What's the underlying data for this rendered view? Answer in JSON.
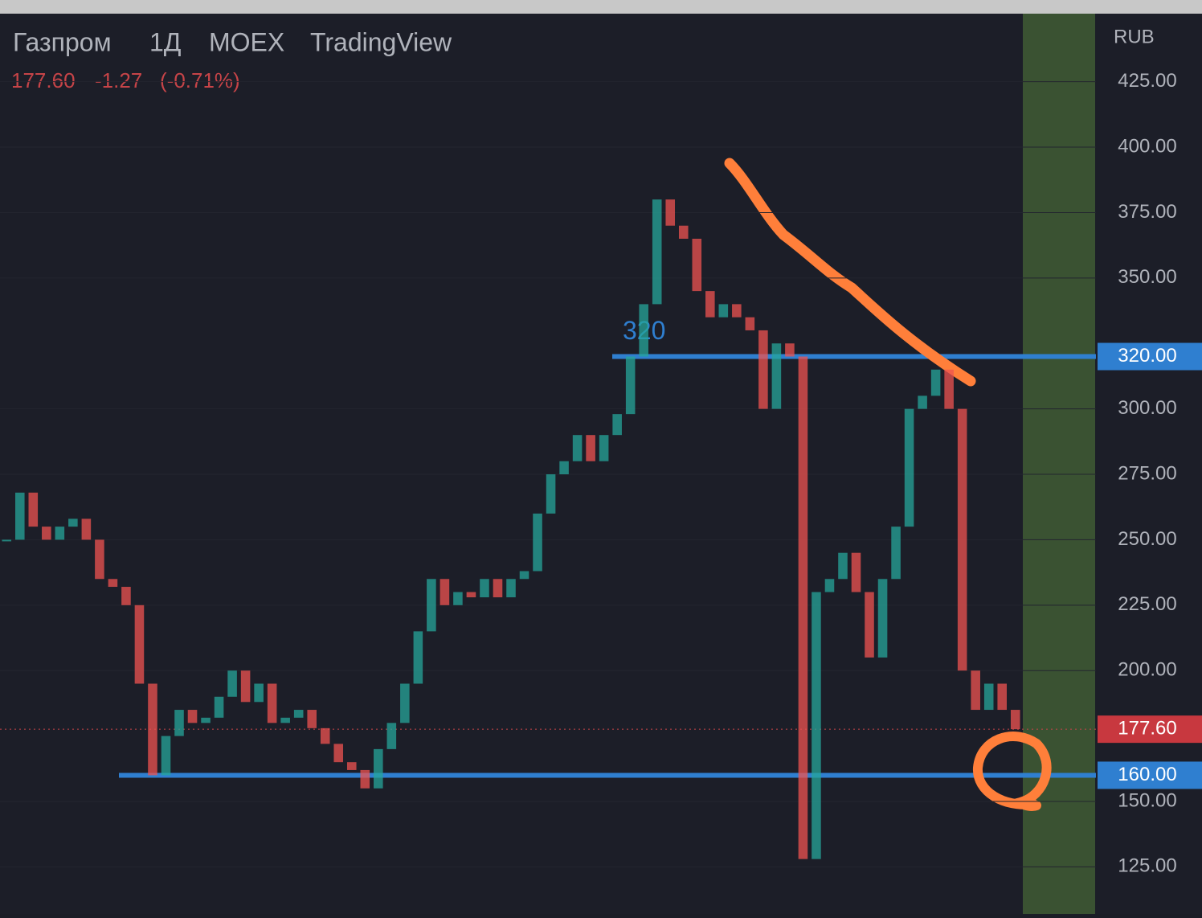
{
  "chart_data": {
    "type": "candlestick",
    "title": "Газпром",
    "interval": "1Д",
    "exchange": "MOEX",
    "platform": "TradingView",
    "last_price": {
      "value": 177.6,
      "label": "177.60"
    },
    "change": "-1.27",
    "change_percent": "(-0.71%)",
    "currency": "RUB",
    "up_color": "#26a69a",
    "down_color": "#ef5350",
    "values": [
      250,
      268,
      255,
      250,
      255,
      258,
      250,
      235,
      232,
      225,
      195,
      160,
      175,
      185,
      180,
      182,
      190,
      200,
      188,
      195,
      180,
      182,
      185,
      178,
      172,
      165,
      162,
      155,
      170,
      180,
      195,
      215,
      235,
      225,
      230,
      228,
      235,
      228,
      235,
      238,
      260,
      275,
      280,
      290,
      280,
      290,
      298,
      320,
      340,
      380,
      370,
      365,
      345,
      335,
      340,
      335,
      330,
      300,
      325,
      320,
      128,
      230,
      235,
      245,
      230,
      205,
      235,
      255,
      300,
      305,
      315,
      300,
      200,
      185,
      195,
      185,
      177.6
    ],
    "ylim": [
      107,
      451
    ],
    "yticks": [
      {
        "value": 125,
        "label": "125.00"
      },
      {
        "value": 150,
        "label": "150.00"
      },
      {
        "value": 200,
        "label": "200.00"
      },
      {
        "value": 225,
        "label": "225.00"
      },
      {
        "value": 250,
        "label": "250.00"
      },
      {
        "value": 275,
        "label": "275.00"
      },
      {
        "value": 300,
        "label": "300.00"
      },
      {
        "value": 350,
        "label": "350.00"
      },
      {
        "value": 375,
        "label": "375.00"
      },
      {
        "value": 400,
        "label": "400.00"
      },
      {
        "value": 425,
        "label": "425.00"
      }
    ],
    "levels": [
      {
        "value": 320,
        "label": "320.00",
        "annotation": "320",
        "color": "#2f7fd0"
      },
      {
        "value": 160,
        "label": "160.00",
        "color": "#2f7fd0"
      }
    ]
  }
}
